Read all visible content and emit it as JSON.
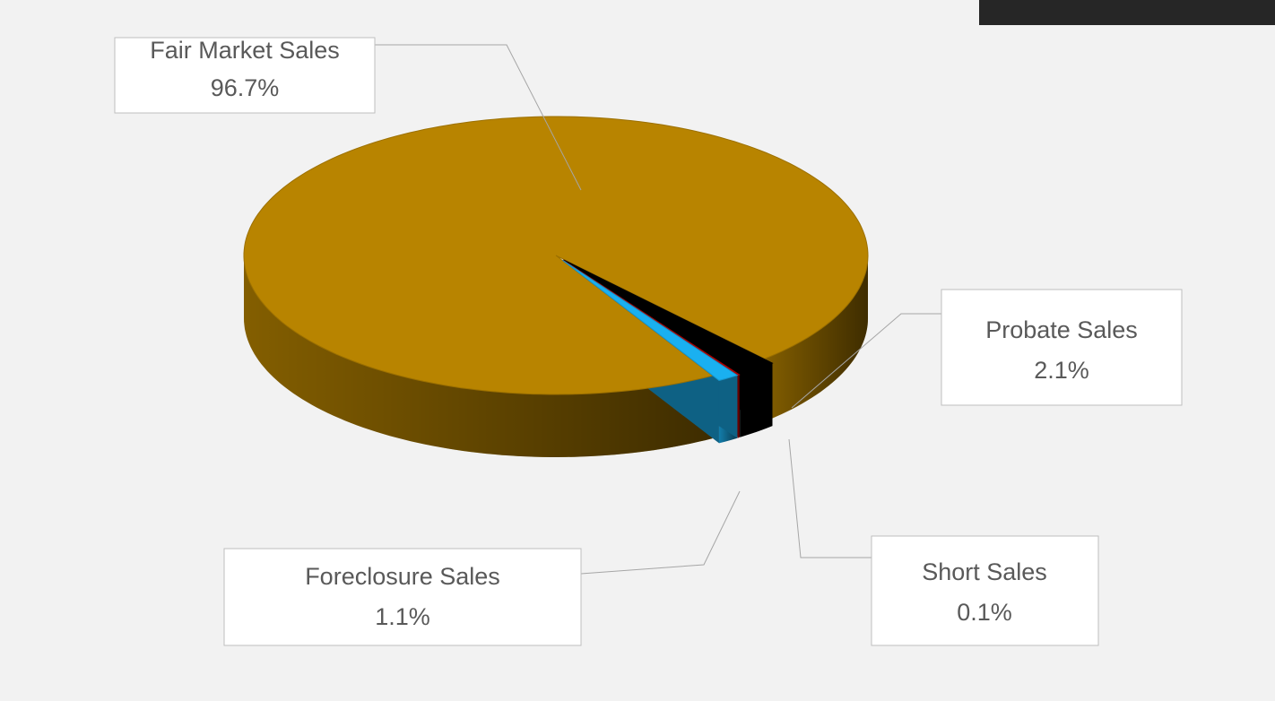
{
  "chart_data": {
    "type": "pie",
    "categories": [
      "Fair Market Sales",
      "Probate Sales",
      "Short Sales",
      "Foreclosure Sales"
    ],
    "values": [
      96.7,
      2.1,
      0.1,
      1.1
    ],
    "value_labels": [
      "96.7%",
      "2.1%",
      "0.1%",
      "1.1%"
    ],
    "colors": [
      "#b88400",
      "#000000",
      "#c00000",
      "#1ab0f0"
    ]
  }
}
